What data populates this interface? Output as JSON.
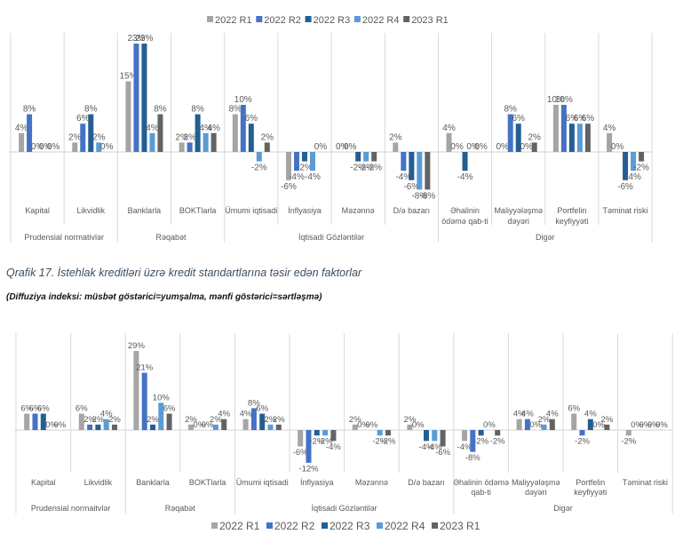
{
  "chart_data": [
    {
      "type": "bar",
      "title": "",
      "xlabel": "",
      "ylabel": "",
      "unit": "%",
      "legend": "top",
      "categories": [
        "Kapital",
        "Likvidlik",
        "Banklarla",
        "BOKTlarla",
        "Ümumi iqtisadi",
        "İnflyasiya",
        "Məzənnə",
        "D/ə bazarı",
        "Əhalinin ödəmə qab-ti",
        "Maliyyələşmə dəyəri",
        "Portfelin keyfiyyəti",
        "Təminat riski"
      ],
      "tick_labels": [
        [
          "Kapital"
        ],
        [
          "Likvidlik"
        ],
        [
          "Banklarla"
        ],
        [
          "BOKTlarla"
        ],
        [
          "Ümumi iqtisadi"
        ],
        [
          "İnflyasiya"
        ],
        [
          "Məzənnə"
        ],
        [
          "D/ə bazarı"
        ],
        [
          "Əhalinin",
          "ödəmə qab-ti"
        ],
        [
          "Maliyyələşmə",
          "dəyəri"
        ],
        [
          "Portfelin",
          "keyfiyyəti"
        ],
        [
          "Təminat riski"
        ]
      ],
      "groups": [
        {
          "label": "Prudensial normativlər",
          "count": 2
        },
        {
          "label": "Rəqabət",
          "count": 2
        },
        {
          "label": "İqtisadi Gözləntilər",
          "count": 4
        },
        {
          "label": "Digər",
          "count": 4
        }
      ],
      "series": [
        {
          "name": "2022 R1",
          "color": "#a5a5a5",
          "values": [
            4,
            2,
            15,
            2,
            8,
            -6,
            0,
            2,
            4,
            0,
            10,
            4
          ],
          "labels": [
            "4%",
            "2%",
            "15%",
            "2%",
            "8%",
            "-6%",
            "0%",
            "2%",
            "4%",
            "0%",
            "10%",
            "4%"
          ]
        },
        {
          "name": "2022 R2",
          "color": "#4472c4",
          "values": [
            8,
            6,
            23,
            2,
            10,
            -4,
            0,
            -4,
            0,
            8,
            10,
            0
          ],
          "labels": [
            "8%",
            "6%",
            "23%",
            "2%",
            "10%",
            "-4%",
            "0%",
            "-4%",
            "0%",
            "8%",
            "10%",
            "0%"
          ]
        },
        {
          "name": "2022 R3",
          "color": "#255e91",
          "values": [
            0,
            8,
            23,
            8,
            6,
            -2,
            -2,
            -6,
            -4,
            6,
            6,
            -6
          ],
          "labels": [
            "0%",
            "8%",
            "23%",
            "8%",
            "6%",
            "-2%",
            "-2%",
            "-6%",
            "-4%",
            "6%",
            "6%",
            "-6%"
          ]
        },
        {
          "name": "2022 R4",
          "color": "#5b9bd5",
          "values": [
            0,
            2,
            4,
            4,
            -2,
            -4,
            -2,
            -8,
            0,
            0,
            6,
            -4
          ],
          "labels": [
            "0%",
            "2%",
            "4%",
            "4%",
            "-2%",
            "-4%",
            "-2%",
            "-8%",
            "0%",
            "0%",
            "6%",
            "-4%"
          ]
        },
        {
          "name": "2023 R1",
          "color": "#636363",
          "values": [
            0,
            0,
            8,
            4,
            2,
            0,
            -2,
            -8,
            0,
            2,
            6,
            -2
          ],
          "labels": [
            "0%",
            "0%",
            "8%",
            "4%",
            "2%",
            "0%",
            "-2%",
            "-8%",
            "0%",
            "2%",
            "6%",
            "-2%"
          ]
        }
      ]
    },
    {
      "type": "bar",
      "title": "Qrafik 17. İstehlak kreditləri üzrə kredit standartlarına təsir edən faktorlar",
      "subtitle": "(Diffuziya indeksi: müsbət göstərici=yumşalma, mənfi göstərici=sərtləşmə)",
      "xlabel": "",
      "ylabel": "",
      "unit": "%",
      "legend": "bottom",
      "categories": [
        "Kapital",
        "Likvidlik",
        "Banklarla",
        "BOKTlarla",
        "Ümumi iqtisadi",
        "İnflyasiya",
        "Məzənnə",
        "D/ə bazarı",
        "Əhalinin ödəmə qab-ti",
        "Maliyyələşmə dəyəri",
        "Portfelin keyfiyyəti",
        "Təminat riski"
      ],
      "tick_labels": [
        [
          "Kapital"
        ],
        [
          "Likvidlik"
        ],
        [
          "Banklarla"
        ],
        [
          "BOKTlarla"
        ],
        [
          "Ümumi iqtisadi"
        ],
        [
          "İnflyasiya"
        ],
        [
          "Məzənnə"
        ],
        [
          "D/ə bazarı"
        ],
        [
          "Əhalinin ödəmə",
          "qab-ti"
        ],
        [
          "Maliyyələşmə",
          "dəyəri"
        ],
        [
          "Portfelin",
          "keyfiyyəti"
        ],
        [
          "Təminat riski"
        ]
      ],
      "groups": [
        {
          "label": "Prudensial normaitvlər",
          "count": 2
        },
        {
          "label": "Rəqabət",
          "count": 2
        },
        {
          "label": "İqtisadi Gözləntilər",
          "count": 4
        },
        {
          "label": "Digər",
          "count": 4
        }
      ],
      "series": [
        {
          "name": "2022 R1",
          "color": "#a5a5a5",
          "values": [
            6,
            6,
            29,
            2,
            4,
            -6,
            2,
            2,
            -4,
            4,
            6,
            -2
          ],
          "labels": [
            "6%",
            "6%",
            "29%",
            "2%",
            "4%",
            "-6%",
            "2%",
            "2%",
            "-4%",
            "4%",
            "6%",
            "-2%"
          ]
        },
        {
          "name": "2022 R2",
          "color": "#4472c4",
          "values": [
            6,
            2,
            21,
            0,
            8,
            -12,
            0,
            0,
            -8,
            4,
            -2,
            0
          ],
          "labels": [
            "6%",
            "2%",
            "21%",
            "0%",
            "8%",
            "-12%",
            "0%",
            "0%",
            "-8%",
            "4%",
            "-2%",
            "0%"
          ]
        },
        {
          "name": "2022 R3",
          "color": "#255e91",
          "values": [
            6,
            2,
            2,
            0,
            6,
            -2,
            0,
            -4,
            -2,
            0,
            4,
            0
          ],
          "labels": [
            "6%",
            "2%",
            "2%",
            "0%",
            "6%",
            "-2%",
            "0%",
            "-4%",
            "-2%",
            "0%",
            "4%",
            "0%"
          ]
        },
        {
          "name": "2022 R4",
          "color": "#5b9bd5",
          "values": [
            0,
            4,
            10,
            2,
            2,
            -2,
            -2,
            -4,
            0,
            2,
            0,
            0
          ],
          "labels": [
            "0%",
            "4%",
            "10%",
            "2%",
            "2%",
            "-2%",
            "-2%",
            "-4%",
            "0%",
            "2%",
            "0%",
            "0%"
          ]
        },
        {
          "name": "2023 R1",
          "color": "#636363",
          "values": [
            0,
            2,
            6,
            4,
            2,
            -4,
            -2,
            -6,
            -2,
            4,
            2,
            0
          ],
          "labels": [
            "0%",
            "2%",
            "6%",
            "4%",
            "2%",
            "-4%",
            "-2%",
            "-6%",
            "-2%",
            "4%",
            "2%",
            "0%"
          ]
        }
      ]
    }
  ]
}
